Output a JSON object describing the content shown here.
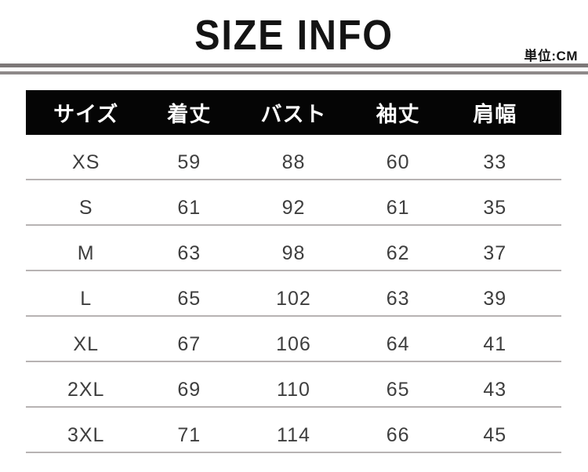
{
  "page": {
    "title": "SIZE INFO",
    "unit_label": "単位:CM"
  },
  "table": {
    "headers": [
      "サイズ",
      "着丈",
      "バスト",
      "袖丈",
      "肩幅"
    ],
    "rows": [
      [
        "XS",
        "59",
        "88",
        "60",
        "33"
      ],
      [
        "S",
        "61",
        "92",
        "61",
        "35"
      ],
      [
        "M",
        "63",
        "98",
        "62",
        "37"
      ],
      [
        "L",
        "65",
        "102",
        "63",
        "39"
      ],
      [
        "XL",
        "67",
        "106",
        "64",
        "41"
      ],
      [
        "2XL",
        "69",
        "110",
        "65",
        "43"
      ],
      [
        "3XL",
        "71",
        "114",
        "66",
        "45"
      ]
    ]
  },
  "colors": {
    "header_bg": "#050505",
    "header_text": "#ffffff",
    "rule_thick": "#7d7878",
    "rule_thin": "#8e8989",
    "row_divider": "#b7b3b3",
    "body_text": "#3e3e3e",
    "title_text": "#141414"
  },
  "chart_data": {
    "type": "table",
    "title": "SIZE INFO",
    "unit": "CM",
    "columns": [
      "サイズ",
      "着丈",
      "バスト",
      "袖丈",
      "肩幅"
    ],
    "rows": [
      {
        "サイズ": "XS",
        "着丈": 59,
        "バスト": 88,
        "袖丈": 60,
        "肩幅": 33
      },
      {
        "サイズ": "S",
        "着丈": 61,
        "バスト": 92,
        "袖丈": 61,
        "肩幅": 35
      },
      {
        "サイズ": "M",
        "着丈": 63,
        "バスト": 98,
        "袖丈": 62,
        "肩幅": 37
      },
      {
        "サイズ": "L",
        "着丈": 65,
        "バスト": 102,
        "袖丈": 63,
        "肩幅": 39
      },
      {
        "サイズ": "XL",
        "着丈": 67,
        "バスト": 106,
        "袖丈": 64,
        "肩幅": 41
      },
      {
        "サイズ": "2XL",
        "着丈": 69,
        "バスト": 110,
        "袖丈": 65,
        "肩幅": 43
      },
      {
        "サイズ": "3XL",
        "着丈": 71,
        "バスト": 114,
        "袖丈": 66,
        "肩幅": 45
      }
    ]
  }
}
